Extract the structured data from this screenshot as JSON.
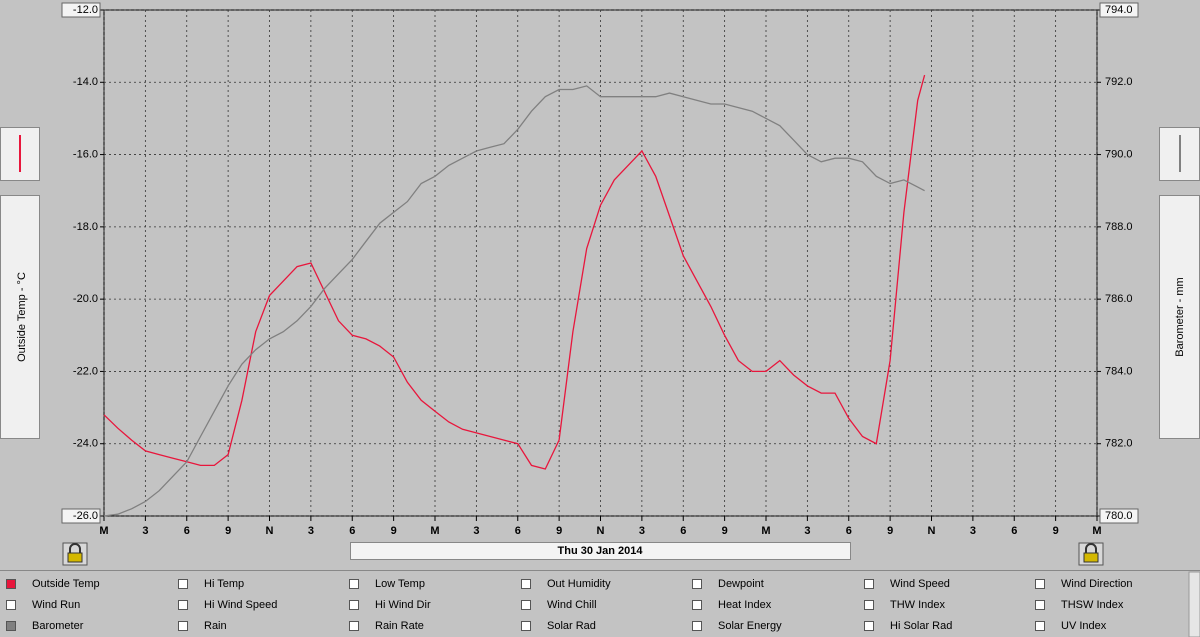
{
  "chart_data": {
    "type": "line",
    "ylabel": "Outside Temp - °C",
    "y2label": "Barometer - mm",
    "xlabel": "Thu 30 Jan 2014",
    "x": [
      0,
      1,
      2,
      3,
      4,
      5,
      6,
      7,
      8,
      9,
      10,
      11,
      12,
      13,
      14,
      15,
      16,
      17,
      18,
      19,
      20,
      21,
      22,
      23,
      24,
      25,
      26,
      27,
      28,
      29,
      30,
      31,
      32,
      33,
      34,
      35,
      36,
      37,
      38,
      39,
      40,
      41,
      42,
      43,
      44,
      45,
      46,
      47,
      48,
      49,
      50,
      51,
      52,
      53,
      54,
      55,
      56,
      57,
      58,
      59,
      59.5
    ],
    "series": [
      {
        "name": "Outside Temp",
        "color": "#e8163c",
        "axis": "y",
        "values": [
          -23.2,
          -23.57,
          -23.9,
          -24.2,
          -24.3,
          -24.4,
          -24.5,
          -24.6,
          -24.6,
          -24.3,
          -22.8,
          -20.9,
          -19.9,
          -19.5,
          -19.1,
          -19.0,
          -19.8,
          -20.6,
          -21.0,
          -21.1,
          -21.3,
          -21.6,
          -22.3,
          -22.8,
          -23.1,
          -23.4,
          -23.6,
          -23.7,
          -23.8,
          -23.9,
          -24.0,
          -24.6,
          -24.7,
          -23.9,
          -20.9,
          -18.6,
          -17.4,
          -16.7,
          -16.3,
          -15.9,
          -16.6,
          -17.7,
          -18.8,
          -19.5,
          -20.2,
          -21.0,
          -21.7,
          -22.0,
          -22.0,
          -21.7,
          -22.1,
          -22.4,
          -22.6,
          -22.6,
          -23.3,
          -23.8,
          -24.0,
          -21.7,
          -17.6,
          -14.5,
          -13.8
        ]
      },
      {
        "name": "Barometer",
        "color": "#808080",
        "axis": "y2",
        "values": [
          780.0,
          780.05,
          780.2,
          780.4,
          780.7,
          781.1,
          781.5,
          782.2,
          782.9,
          783.6,
          784.2,
          784.6,
          784.9,
          785.1,
          785.4,
          785.8,
          786.3,
          786.7,
          787.1,
          787.6,
          788.1,
          788.4,
          788.7,
          789.2,
          789.4,
          789.7,
          789.9,
          790.1,
          790.2,
          790.3,
          790.7,
          791.2,
          791.6,
          791.8,
          791.8,
          791.9,
          791.6,
          791.6,
          791.6,
          791.6,
          791.6,
          791.7,
          791.6,
          791.5,
          791.4,
          791.4,
          791.3,
          791.2,
          791.0,
          790.8,
          790.4,
          790.0,
          789.8,
          789.9,
          789.9,
          789.8,
          789.4,
          789.2,
          789.3,
          789.1,
          789.0
        ]
      }
    ],
    "xlim": [
      0,
      72
    ],
    "xticks": [
      {
        "value": 0,
        "label": "M"
      },
      3,
      6,
      9,
      {
        "value": 12,
        "label": "N"
      },
      {
        "value": 15,
        "label": "3"
      },
      {
        "value": 18,
        "label": "6"
      },
      {
        "value": 21,
        "label": "9"
      },
      {
        "value": 24,
        "label": "M"
      },
      {
        "value": 27,
        "label": "3"
      },
      {
        "value": 30,
        "label": "6"
      },
      {
        "value": 33,
        "label": "9"
      },
      {
        "value": 36,
        "label": "N"
      },
      {
        "value": 39,
        "label": "3"
      },
      {
        "value": 42,
        "label": "6"
      },
      {
        "value": 45,
        "label": "9"
      },
      {
        "value": 48,
        "label": "M"
      },
      {
        "value": 51,
        "label": "3"
      },
      {
        "value": 54,
        "label": "6"
      },
      {
        "value": 57,
        "label": "9"
      },
      {
        "value": 60,
        "label": "N"
      },
      {
        "value": 63,
        "label": "3"
      },
      {
        "value": 66,
        "label": "6"
      },
      {
        "value": 69,
        "label": "9"
      },
      {
        "value": 72,
        "label": "M"
      }
    ],
    "ylim": [
      -26,
      -12
    ],
    "yticks": [
      {
        "value": -26,
        "label": "-26.0"
      },
      {
        "value": -24,
        "label": "-24.0"
      },
      {
        "value": -22,
        "label": "-22.0"
      },
      {
        "value": -20,
        "label": "-20.0"
      },
      {
        "value": -18,
        "label": "-18.0"
      },
      {
        "value": -16,
        "label": "-16.0"
      },
      {
        "value": -14,
        "label": "-14.0"
      },
      {
        "value": -12,
        "label": "-12.0"
      }
    ],
    "y2lim": [
      780,
      794
    ],
    "y2ticks": [
      {
        "value": 780,
        "label": "780.0"
      },
      {
        "value": 782,
        "label": "782.0"
      },
      {
        "value": 784,
        "label": "784.0"
      },
      {
        "value": 786,
        "label": "786.0"
      },
      {
        "value": 788,
        "label": "788.0"
      },
      {
        "value": 790,
        "label": "790.0"
      },
      {
        "value": 792,
        "label": "792.0"
      },
      {
        "value": 794,
        "label": "794.0"
      }
    ],
    "grid": true
  },
  "legend_panel": {
    "items": [
      {
        "label": "Outside Temp",
        "checked": true,
        "color": "#e8163c"
      },
      {
        "label": "Hi Temp",
        "checked": false
      },
      {
        "label": "Low Temp",
        "checked": false
      },
      {
        "label": "Out Humidity",
        "checked": false
      },
      {
        "label": "Dewpoint",
        "checked": false
      },
      {
        "label": "Wind Speed",
        "checked": false
      },
      {
        "label": "Wind Direction",
        "checked": false
      },
      {
        "label": "Wind Run",
        "checked": false
      },
      {
        "label": "Hi Wind Speed",
        "checked": false
      },
      {
        "label": "Hi Wind Dir",
        "checked": false
      },
      {
        "label": "Wind Chill",
        "checked": false
      },
      {
        "label": "Heat Index",
        "checked": false
      },
      {
        "label": "THW Index",
        "checked": false
      },
      {
        "label": "THSW Index",
        "checked": false
      },
      {
        "label": "Barometer",
        "checked": true,
        "color": "#808080"
      },
      {
        "label": "Rain",
        "checked": false
      },
      {
        "label": "Rain Rate",
        "checked": false
      },
      {
        "label": "Solar Rad",
        "checked": false
      },
      {
        "label": "Solar Energy",
        "checked": false
      },
      {
        "label": "Hi Solar Rad",
        "checked": false
      },
      {
        "label": "UV Index",
        "checked": false
      }
    ]
  }
}
